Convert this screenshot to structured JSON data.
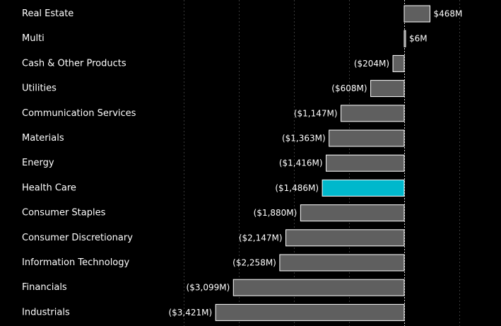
{
  "chart_data": {
    "type": "bar",
    "orientation": "horizontal",
    "categories": [
      "Real Estate",
      "Multi",
      "Cash & Other Products",
      "Utilities",
      "Communication Services",
      "Materials",
      "Energy",
      "Health Care",
      "Consumer Staples",
      "Consumer Discretionary",
      "Information Technology",
      "Financials",
      "Industrials"
    ],
    "values": [
      468,
      6,
      -204,
      -608,
      -1147,
      -1363,
      -1416,
      -1486,
      -1880,
      -2147,
      -2258,
      -3099,
      -3421
    ],
    "value_labels": [
      "$468M",
      "$6M",
      "($204M)",
      "($608M)",
      "($1,147M)",
      "($1,363M)",
      "($1,416M)",
      "($1,486M)",
      "($1,880M)",
      "($2,147M)",
      "($2,258M)",
      "($3,099M)",
      "($3,421M)"
    ],
    "unit": "$M",
    "highlight_category": "Health Care",
    "xlim": [
      -4600,
      1050
    ],
    "grid_x": [
      -4000,
      -3000,
      -2000,
      -1000,
      0,
      1000
    ],
    "grid": true,
    "title": "",
    "xlabel": "",
    "ylabel": ""
  },
  "colors": {
    "background": "#000000",
    "bar": "#5f5f5f",
    "highlight": "#00b8cc",
    "text": "#ffffff",
    "grid": "#3a3a3a",
    "zero_line": "#d0d0d0"
  }
}
